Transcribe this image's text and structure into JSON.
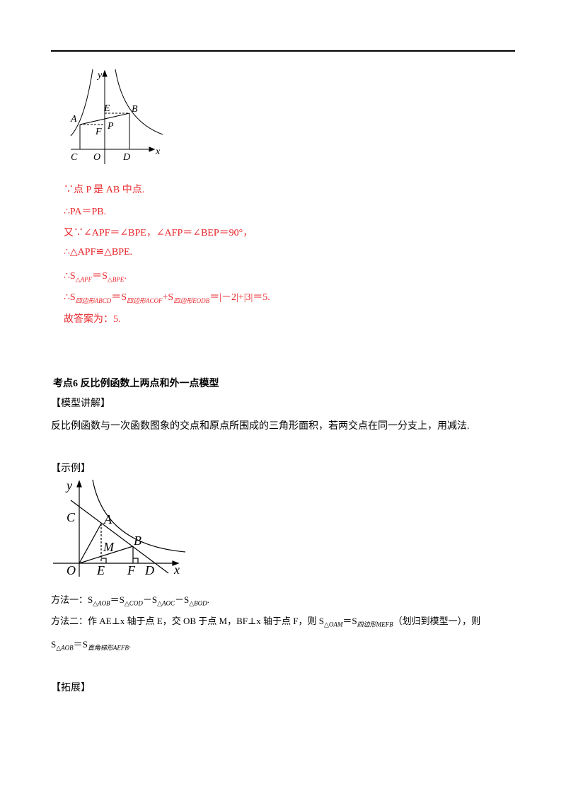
{
  "figure1": {
    "labels": [
      "y",
      "A",
      "E",
      "B",
      "F",
      "P",
      "C",
      "O",
      "D",
      "x"
    ]
  },
  "solution": {
    "lines": [
      [
        "∵点 P 是 AB 中点."
      ],
      [
        "∴PA＝PB."
      ],
      [
        "又∵∠APF＝∠BPE，∠AFP＝∠BEP＝90°，"
      ],
      [
        "∴△APF≌△BPE."
      ],
      [
        "∴S",
        "△APF",
        "＝S",
        "△BPE",
        "."
      ],
      [
        "∴S",
        "四边形ABCD",
        "＝S",
        "四边形ACOF",
        "+S",
        "四边形EODB",
        "＝|－2|+|3|＝5."
      ],
      [
        "故答案为：5."
      ]
    ]
  },
  "section": {
    "heading": "考点6 反比例函数上两点和外一点模型",
    "explain_title": "【模型讲解】",
    "explain": "反比例函数与一次函数图象的交点和原点所围成的三角形面积，若两交点在同一分支上，用减法.",
    "example_title": "【示例】",
    "figure2": {
      "labels": [
        "y",
        "C",
        "A",
        "M",
        "B",
        "O",
        "E",
        "F",
        "D",
        "x"
      ]
    },
    "method1": [
      "方法一：S",
      "△AOB",
      "＝S",
      "△COD",
      "－S",
      "△AOC",
      "－S",
      "△BOD",
      "."
    ],
    "method2": [
      [
        "方法二：作 AE⊥x 轴于点 E，交 OB 于点 M，BF⊥x 轴于点 F，则 S",
        "△OAM",
        "＝S",
        "四边形MEFB",
        "（划归到模型一），则"
      ],
      [
        "S",
        "△AOB",
        "＝S",
        "直角梯形AEFB",
        "."
      ]
    ],
    "extend_title": "【拓展】"
  }
}
